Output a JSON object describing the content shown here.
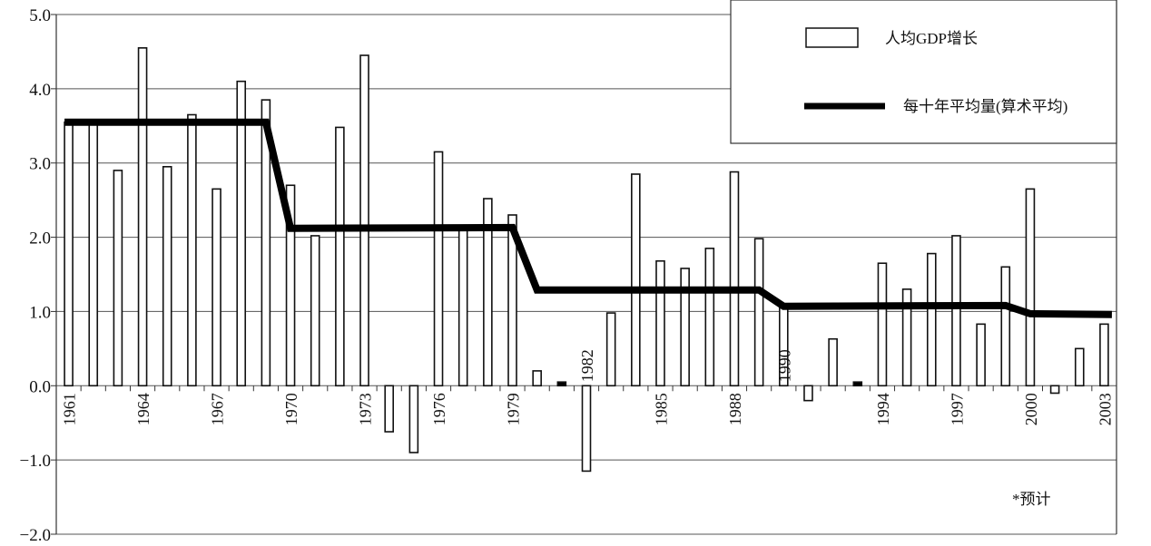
{
  "chart_data": {
    "type": "bar",
    "title": "",
    "xlabel": "",
    "ylabel": "",
    "ylim": [
      -2.0,
      5.0
    ],
    "yticks": [
      "5.0",
      "4.0",
      "3.0",
      "2.0",
      "1.0",
      "0.0",
      "−1.0",
      "−2.0"
    ],
    "ytick_values": [
      5,
      4,
      3,
      2,
      1,
      0,
      -1,
      -2
    ],
    "grid": "horizontal",
    "legend_placement": "top-right",
    "categories": [
      1961,
      1962,
      1963,
      1964,
      1965,
      1966,
      1967,
      1968,
      1969,
      1970,
      1971,
      1972,
      1973,
      1974,
      1975,
      1976,
      1977,
      1978,
      1979,
      1980,
      1981,
      1982,
      1983,
      1984,
      1985,
      1986,
      1987,
      1988,
      1989,
      1990,
      1991,
      1992,
      1993,
      1994,
      1995,
      1996,
      1997,
      1998,
      1999,
      2000,
      2001,
      2002,
      2003
    ],
    "xtick_labels": [
      "1961",
      "1964",
      "1967",
      "1970",
      "1973",
      "1976",
      "1979",
      "1982",
      "1985",
      "1988",
      "1990",
      "1994",
      "1997",
      "2000",
      "2003"
    ],
    "series": [
      {
        "name": "人均GDP增长",
        "type": "bar",
        "color": "#ffffff",
        "values": [
          3.55,
          3.55,
          2.9,
          4.55,
          2.95,
          3.65,
          2.65,
          4.1,
          3.85,
          2.7,
          2.02,
          3.48,
          4.45,
          -0.62,
          -0.9,
          3.15,
          2.12,
          2.52,
          2.3,
          0.2,
          0.05,
          -1.15,
          0.98,
          2.85,
          1.68,
          1.58,
          1.85,
          2.88,
          1.98,
          1.05,
          -0.2,
          0.63,
          0.05,
          1.65,
          1.3,
          1.78,
          2.02,
          0.83,
          1.6,
          2.65,
          -0.1,
          0.5,
          0.83
        ]
      },
      {
        "name": "每十年平均量(算术平均)",
        "type": "line",
        "color": "#000000",
        "points": [
          [
            1961,
            3.55
          ],
          [
            1969,
            3.55
          ],
          [
            1970,
            2.12
          ],
          [
            1979,
            2.13
          ],
          [
            1980,
            1.29
          ],
          [
            1989,
            1.29
          ],
          [
            1990,
            1.07
          ],
          [
            1999,
            1.08
          ],
          [
            2000,
            0.97
          ],
          [
            2003,
            0.96
          ]
        ]
      }
    ],
    "annotation": "*预计"
  }
}
